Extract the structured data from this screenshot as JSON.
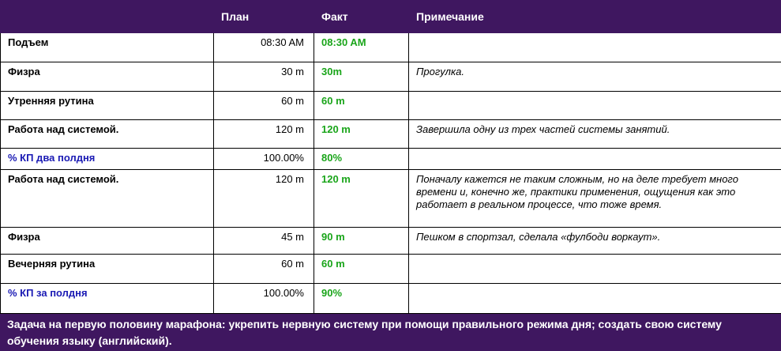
{
  "table": {
    "headers": [
      "План",
      "Факт",
      "Примечание"
    ],
    "rows": [
      {
        "label": "Подъем",
        "plan": "08:30 AM",
        "fact": "08:30 AM"
      },
      {
        "label": "Физра",
        "plan": "30 m",
        "fact": "30m",
        "note": "Прогулка."
      },
      {
        "label": "Утренняя  рутина",
        "plan": "60 m",
        "fact": "60 m"
      },
      {
        "label": "Работа  над системой.",
        "plan": "120 m",
        "fact": "120 m",
        "note": "Завершила одну из трех частей системы занятий."
      },
      {
        "label": "% КП два полдня",
        "plan": "100.00%",
        "fact": "80%",
        "label_color": "#1a1ab4"
      },
      {
        "label": "Работа  над системой.",
        "plan": "120 m",
        "fact": "120 m",
        "note": "Поначалу кажется не таким сложным, но на деле требует много времени  и, конечно же, практики применения, ощущения как это работает в реальном процессе, что тоже время."
      },
      {
        "label": "Физра",
        "plan": "45 m",
        "fact": "90 m",
        "note": "Пешком в спортзал, сделала «фулбоди воркаут»."
      },
      {
        "label": "Вечерняя рутина",
        "plan": "60 m",
        "fact": "60 m"
      },
      {
        "label": "% КП за полдня",
        "plan": "100.00%",
        "fact": "90%",
        "label_color": "#1a1ab4"
      }
    ],
    "footer": "Задача на первую половину марафона: укрепить  нервную систему при помощи правильного режима дня;  создать свою систему обучения языку (английский)."
  }
}
